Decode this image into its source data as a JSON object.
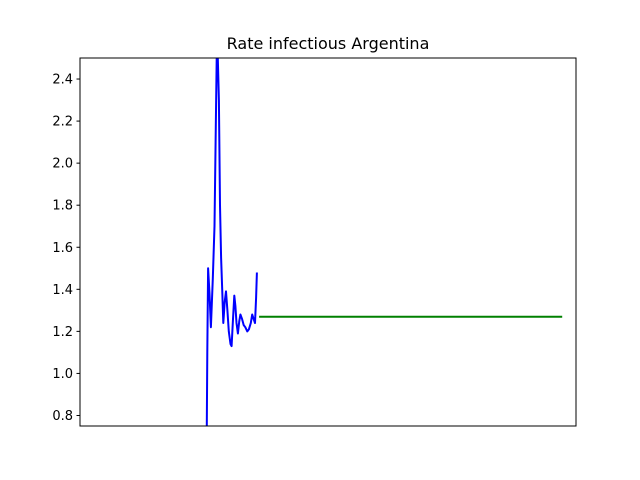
{
  "chart_data": {
    "type": "line",
    "title": "Rate infectious Argentina",
    "xlabel": "",
    "ylabel": "",
    "ylim": [
      0.75,
      2.5
    ],
    "xlim": [
      -20,
      160
    ],
    "y_ticks": [
      "0.8",
      "1.0",
      "1.2",
      "1.4",
      "1.6",
      "1.8",
      "2.0",
      "2.2",
      "2.4"
    ],
    "grid": false,
    "series": [
      {
        "color": "#0000ff",
        "points": [
          [
            26,
            0.75
          ],
          [
            26.2,
            1.1
          ],
          [
            26.5,
            1.5
          ],
          [
            27,
            1.38
          ],
          [
            27.5,
            1.22
          ],
          [
            28.2,
            1.45
          ],
          [
            28.8,
            1.7
          ],
          [
            29.2,
            2.1
          ],
          [
            29.6,
            2.5
          ],
          [
            30.0,
            2.5
          ],
          [
            30.4,
            2.3
          ],
          [
            30.8,
            1.8
          ],
          [
            31.2,
            1.55
          ],
          [
            31.6,
            1.4
          ],
          [
            32,
            1.24
          ],
          [
            32.5,
            1.34
          ],
          [
            33,
            1.39
          ],
          [
            33.5,
            1.3
          ],
          [
            34,
            1.2
          ],
          [
            34.6,
            1.14
          ],
          [
            35,
            1.13
          ],
          [
            35.5,
            1.25
          ],
          [
            36,
            1.37
          ],
          [
            36.4,
            1.32
          ],
          [
            36.8,
            1.24
          ],
          [
            37.3,
            1.19
          ],
          [
            37.8,
            1.25
          ],
          [
            38.2,
            1.28
          ],
          [
            38.8,
            1.26
          ],
          [
            39.4,
            1.23
          ],
          [
            40,
            1.22
          ],
          [
            40.7,
            1.2
          ],
          [
            41.3,
            1.21
          ],
          [
            42,
            1.24
          ],
          [
            42.5,
            1.28
          ],
          [
            43,
            1.26
          ],
          [
            43.5,
            1.24
          ],
          [
            43.9,
            1.36
          ],
          [
            44.2,
            1.48
          ]
        ]
      },
      {
        "color": "#008000",
        "points": [
          [
            45,
            1.27
          ],
          [
            155,
            1.27
          ]
        ]
      }
    ]
  }
}
